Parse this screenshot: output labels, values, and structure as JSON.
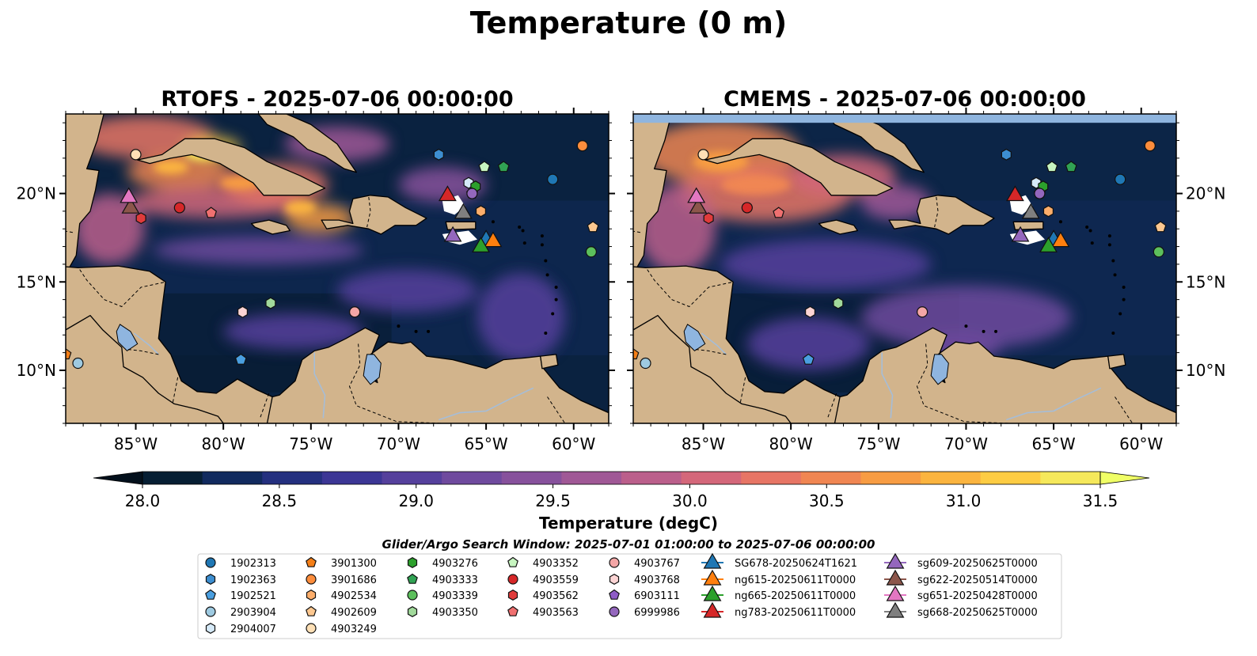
{
  "title": "Temperature (0 m)",
  "panels": [
    {
      "key": "rtofs",
      "title": "RTOFS - 2025-07-06 00:00:00"
    },
    {
      "key": "cmems",
      "title": "CMEMS - 2025-07-06 00:00:00"
    }
  ],
  "map_extent": {
    "lon": [
      -89,
      -58
    ],
    "lat": [
      7,
      24.5
    ]
  },
  "lon_ticks": [
    {
      "value": -85,
      "label": "85°W"
    },
    {
      "value": -80,
      "label": "80°W"
    },
    {
      "value": -75,
      "label": "75°W"
    },
    {
      "value": -70,
      "label": "70°W"
    },
    {
      "value": -65,
      "label": "65°W"
    },
    {
      "value": -60,
      "label": "60°W"
    }
  ],
  "lat_ticks": [
    {
      "value": 20,
      "label": "20°N"
    },
    {
      "value": 15,
      "label": "15°N"
    },
    {
      "value": 10,
      "label": "10°N"
    }
  ],
  "colorbar": {
    "label": "Temperature (degC)",
    "min": 28.0,
    "max": 31.5,
    "extend": "both",
    "ticks": [
      "28.0",
      "28.5",
      "29.0",
      "29.5",
      "30.0",
      "30.5",
      "31.0",
      "31.5"
    ],
    "colors": [
      "#061e33",
      "#112a5e",
      "#24307f",
      "#3c3695",
      "#55409c",
      "#6f4a9e",
      "#87519c",
      "#a05896",
      "#bb5f8b",
      "#d4677a",
      "#e77565",
      "#f08652",
      "#f79c43",
      "#fbb43f",
      "#fdcc43",
      "#f5e85b"
    ],
    "over_color": "#f0ff66",
    "under_color": "#03101c"
  },
  "map_colors": {
    "land": "#d2b48c",
    "lake": "#8fb5df",
    "river": "#a6bdd7",
    "cmems_nodata": "#8fb5df"
  },
  "legend": {
    "title": "Glider/Argo Search Window: 2025-07-01 01:00:00 to 2025-07-06 00:00:00",
    "columns": [
      [
        {
          "label": "1902313",
          "marker": "circle",
          "color": "#1f77b4"
        },
        {
          "label": "1902363",
          "marker": "hexagon",
          "color": "#3d8ed0"
        },
        {
          "label": "1902521",
          "marker": "pentagon",
          "color": "#4a9fe0"
        },
        {
          "label": "2903904",
          "marker": "circle",
          "color": "#9ecae1"
        },
        {
          "label": "2904007",
          "marker": "hexagon",
          "color": "#d6eaf8"
        }
      ],
      [
        {
          "label": "3901300",
          "marker": "pentagon",
          "color": "#f57f17"
        },
        {
          "label": "3901686",
          "marker": "circle",
          "color": "#fd8d3c"
        },
        {
          "label": "4902534",
          "marker": "hexagon",
          "color": "#fdae6b"
        },
        {
          "label": "4902609",
          "marker": "pentagon",
          "color": "#fdc890"
        },
        {
          "label": "4903249",
          "marker": "circle",
          "color": "#fee0b6"
        }
      ],
      [
        {
          "label": "4903276",
          "marker": "hexagon",
          "color": "#2ca02c"
        },
        {
          "label": "4903333",
          "marker": "pentagon",
          "color": "#31a354"
        },
        {
          "label": "4903339",
          "marker": "circle",
          "color": "#5cbf5c"
        },
        {
          "label": "4903350",
          "marker": "hexagon",
          "color": "#a1d99b"
        }
      ],
      [
        {
          "label": "4903352",
          "marker": "pentagon",
          "color": "#c7f5c0"
        },
        {
          "label": "4903559",
          "marker": "circle",
          "color": "#d62728"
        },
        {
          "label": "4903562",
          "marker": "hexagon",
          "color": "#e03b3b"
        },
        {
          "label": "4903563",
          "marker": "pentagon",
          "color": "#f07070"
        }
      ],
      [
        {
          "label": "4903767",
          "marker": "circle",
          "color": "#f4a6a6"
        },
        {
          "label": "4903768",
          "marker": "hexagon",
          "color": "#fcd4d4"
        },
        {
          "label": "6903111",
          "marker": "pentagon",
          "color": "#8e5cc6"
        },
        {
          "label": "6999986",
          "marker": "circle",
          "color": "#9467bd"
        }
      ],
      [
        {
          "label": "SG678-20250624T1621",
          "marker": "triangle",
          "color": "#1f77b4"
        },
        {
          "label": "ng615-20250611T0000",
          "marker": "triangle",
          "color": "#ff7f0e"
        },
        {
          "label": "ng665-20250611T0000",
          "marker": "triangle",
          "color": "#2ca02c"
        },
        {
          "label": "ng783-20250611T0000",
          "marker": "triangle",
          "color": "#d62728"
        }
      ],
      [
        {
          "label": "sg609-20250625T0000",
          "marker": "triangle",
          "color": "#9467bd"
        },
        {
          "label": "sg622-20250514T0000",
          "marker": "triangle",
          "color": "#8c564b"
        },
        {
          "label": "sg651-20250428T0000",
          "marker": "triangle",
          "color": "#e377c2"
        },
        {
          "label": "sg668-20250625T0000",
          "marker": "triangle",
          "color": "#7f7f7f"
        }
      ]
    ]
  },
  "argo_floats": [
    {
      "id": "1902313",
      "lon": -61.2,
      "lat": 20.8
    },
    {
      "id": "1902363",
      "lon": -67.7,
      "lat": 22.2
    },
    {
      "id": "1902521",
      "lon": -79.0,
      "lat": 10.6
    },
    {
      "id": "2903904",
      "lon": -88.3,
      "lat": 10.4
    },
    {
      "id": "2904007",
      "lon": -66.0,
      "lat": 20.6
    },
    {
      "id": "3901300",
      "lon": -89.0,
      "lat": 10.9
    },
    {
      "id": "3901686",
      "lon": -59.5,
      "lat": 22.7
    },
    {
      "id": "4902534",
      "lon": -65.3,
      "lat": 19.0
    },
    {
      "id": "4902609",
      "lon": -58.9,
      "lat": 18.1
    },
    {
      "id": "4903249",
      "lon": -85.0,
      "lat": 22.2
    },
    {
      "id": "4903276",
      "lon": -65.6,
      "lat": 20.4
    },
    {
      "id": "4903333",
      "lon": -64.0,
      "lat": 21.5
    },
    {
      "id": "4903339",
      "lon": -59.0,
      "lat": 16.7
    },
    {
      "id": "4903350",
      "lon": -77.3,
      "lat": 13.8
    },
    {
      "id": "4903352",
      "lon": -65.1,
      "lat": 21.5
    },
    {
      "id": "4903559",
      "lon": -82.5,
      "lat": 19.2
    },
    {
      "id": "4903562",
      "lon": -84.7,
      "lat": 18.6
    },
    {
      "id": "4903563",
      "lon": -80.7,
      "lat": 18.9
    },
    {
      "id": "4903767",
      "lon": -72.5,
      "lat": 13.3
    },
    {
      "id": "4903768",
      "lon": -78.9,
      "lat": 13.3
    },
    {
      "id": "6903111",
      "lon": -65.8,
      "lat": 20.0
    },
    {
      "id": "6999986",
      "lon": -65.8,
      "lat": 20.0
    }
  ],
  "gliders": [
    {
      "id": "SG678-20250624T1621",
      "lon": -65.0,
      "lat": 17.5
    },
    {
      "id": "ng615-20250611T0000",
      "lon": -64.6,
      "lat": 17.4
    },
    {
      "id": "ng665-20250611T0000",
      "lon": -65.3,
      "lat": 17.1
    },
    {
      "id": "ng783-20250611T0000",
      "lon": -67.2,
      "lat": 20.0
    },
    {
      "id": "sg609-20250625T0000",
      "lon": -66.9,
      "lat": 17.7
    },
    {
      "id": "sg622-20250514T0000",
      "lon": -85.3,
      "lat": 19.3
    },
    {
      "id": "sg651-20250428T0000",
      "lon": -85.4,
      "lat": 19.9
    },
    {
      "id": "sg668-20250625T0000",
      "lon": -66.3,
      "lat": 19.0
    }
  ]
}
